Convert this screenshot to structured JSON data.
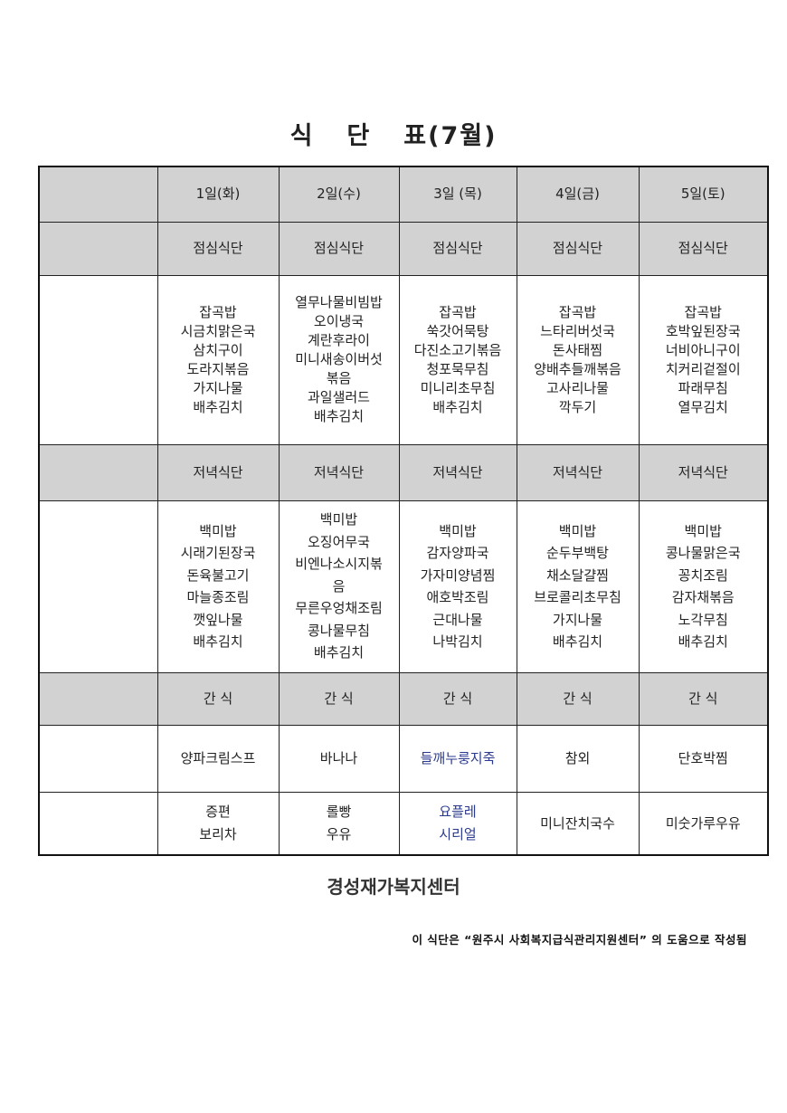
{
  "title": {
    "part1": "식",
    "part2": "단",
    "part3": "표(7월)"
  },
  "days": [
    "1일(화)",
    "2일(수)",
    "3일 (목)",
    "4일(금)",
    "5일(토)"
  ],
  "lunch_label": "점심식단",
  "dinner_label": "저녁식단",
  "snack_label": "간 식",
  "lunch": [
    [
      "잡곡밥",
      "시금치맑은국",
      "삼치구이",
      "도라지볶음",
      "가지나물",
      "배추김치"
    ],
    [
      "열무나물비빔밥",
      "오이냉국",
      "계란후라이",
      "미니새송이버섯",
      "볶음",
      "과일샐러드",
      "배추김치"
    ],
    [
      "잡곡밥",
      "쑥갓어묵탕",
      "다진소고기볶음",
      "청포묵무침",
      "미니리초무침",
      "배추김치"
    ],
    [
      "잡곡밥",
      "느타리버섯국",
      "돈사태찜",
      "양배추들깨볶음",
      "고사리나물",
      "깍두기"
    ],
    [
      "잡곡밥",
      "호박잎된장국",
      "너비아니구이",
      "치커리겉절이",
      "파래무침",
      "열무김치"
    ]
  ],
  "dinner": [
    [
      "백미밥",
      "시래기된장국",
      "돈육불고기",
      "마늘종조림",
      "깻잎나물",
      "배추김치"
    ],
    [
      "백미밥",
      "오징어무국",
      "비엔나소시지볶",
      "음",
      "무른우엉채조림",
      "콩나물무침",
      "배추김치"
    ],
    [
      "백미밥",
      "감자양파국",
      "가자미양념찜",
      "애호박조림",
      "근대나물",
      "나박김치"
    ],
    [
      "백미밥",
      "순두부백탕",
      "채소달걀찜",
      "브로콜리초무침",
      "가지나물",
      "배추김치"
    ],
    [
      "백미밥",
      "콩나물맑은국",
      "꽁치조림",
      "감자채볶음",
      "노각무침",
      "배추김치"
    ]
  ],
  "snack1": [
    "양파크림스프",
    "바나나",
    "들깨누룽지죽",
    "참외",
    "단호박찜"
  ],
  "snack2": [
    [
      "증편",
      "보리차"
    ],
    [
      "롤빵",
      "우유"
    ],
    [
      "요플레",
      "시리얼"
    ],
    [
      "미니잔치국수"
    ],
    [
      "미숫가루우유"
    ]
  ],
  "highlight_color": "#2b3a8f",
  "footer": "경성재가복지센터",
  "note": "이 식단은 “원주시 사회복지급식관리지원센터” 의 도움으로 작성됨"
}
